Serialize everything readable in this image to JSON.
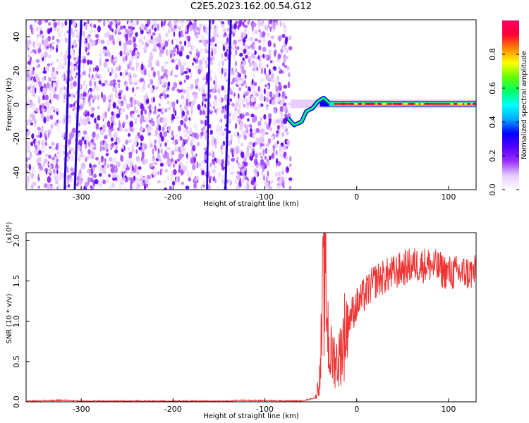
{
  "title": "C2E5.2023.162.00.54.G12",
  "chart_data": [
    {
      "type": "heatmap",
      "xlabel": "Height of straight line (km)",
      "ylabel": "Frequency (Hz)",
      "xlim": [
        -360,
        130
      ],
      "ylim": [
        -50,
        50
      ],
      "xticks": [
        -300,
        -200,
        -100,
        0,
        100
      ],
      "yticks": [
        -40,
        -20,
        0,
        20,
        40
      ],
      "grid": false,
      "colorbar": {
        "label": "Normalized spectral amplitude",
        "range": [
          0.0,
          1.0
        ],
        "ticks": [
          0.0,
          0.2,
          0.4,
          0.6,
          0.8
        ],
        "colormap": [
          "#ffffff",
          "#e6ccff",
          "#9933ff",
          "#5500ff",
          "#0000ff",
          "#00aaff",
          "#00ffff",
          "#00ff66",
          "#66ff00",
          "#ffff00",
          "#ff8800",
          "#ff0033",
          "#ff0066"
        ]
      },
      "features": {
        "noise_region": [
          -360,
          -72
        ],
        "signal_line": {
          "x_start": -75,
          "x_end": 130,
          "freq": 0.5
        }
      }
    },
    {
      "type": "line",
      "xlabel": "Height of straight line (km)",
      "ylabel": "SNR (10 * v/v)",
      "y_multiplier": "(x10⁴)",
      "xlim": [
        -360,
        130
      ],
      "ylim": [
        0,
        2.1
      ],
      "xticks": [
        -300,
        -200,
        -100,
        0,
        100
      ],
      "yticks": [
        0.0,
        0.5,
        1.0,
        1.5,
        2.0
      ],
      "color": "#ee3333",
      "series": [
        {
          "x": [
            -360,
            -320,
            -300,
            -200,
            -135,
            -130,
            -60,
            -45,
            -40,
            -35,
            -30,
            -20,
            -10,
            0,
            20,
            40,
            60,
            80,
            100,
            130
          ],
          "values": [
            0.01,
            0.02,
            0.01,
            0.01,
            0.01,
            0.02,
            0.01,
            0.05,
            0.3,
            1.8,
            0.6,
            0.5,
            1.0,
            1.2,
            1.5,
            1.6,
            1.7,
            1.7,
            1.6,
            1.6
          ]
        }
      ]
    }
  ]
}
